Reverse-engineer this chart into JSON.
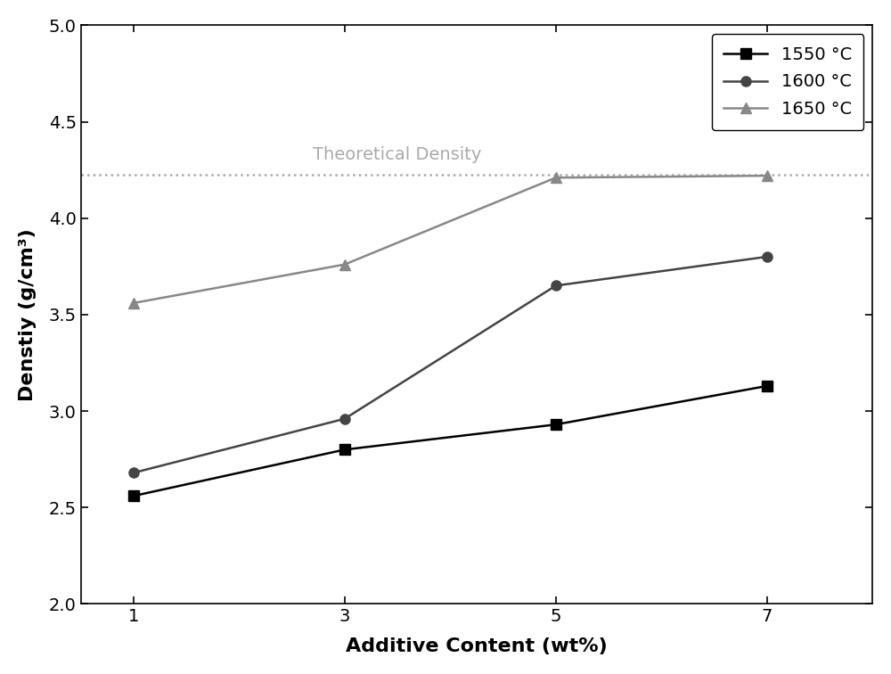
{
  "x": [
    1,
    3,
    5,
    7
  ],
  "series_1550": [
    2.56,
    2.8,
    2.93,
    3.13
  ],
  "series_1600": [
    2.68,
    2.96,
    3.65,
    3.8
  ],
  "series_1650": [
    3.56,
    3.76,
    4.21,
    4.22
  ],
  "theoretical_density": 4.225,
  "label_1550": "1550 °C",
  "label_1600": "1600 °C",
  "label_1650": "1650 °C",
  "theoretical_label": "Theoretical Density",
  "xlabel": "Additive Content (wt%)",
  "ylabel": "Denstiy (g/cm³)",
  "ylim": [
    2.0,
    5.0
  ],
  "xlim": [
    0.5,
    8.0
  ],
  "yticks": [
    2.0,
    2.5,
    3.0,
    3.5,
    4.0,
    4.5,
    5.0
  ],
  "xticks": [
    1,
    3,
    5,
    7
  ],
  "color_1550": "#000000",
  "color_1600": "#444444",
  "color_1650": "#888888",
  "theoretical_color": "#aaaaaa",
  "marker_1550": "s",
  "marker_1600": "o",
  "marker_1650": "^",
  "linewidth": 1.8,
  "markersize": 8,
  "legend_fontsize": 14,
  "axis_label_fontsize": 16,
  "tick_fontsize": 14,
  "annotation_fontsize": 14,
  "background_color": "#ffffff",
  "figwidth": 10.0,
  "figheight": 7.56,
  "dpi": 100
}
